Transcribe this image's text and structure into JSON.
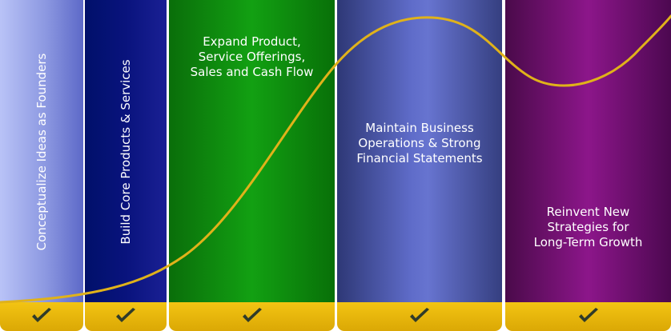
{
  "stages": [
    {
      "label": "Conceptualize Ideas as Founders"
    },
    {
      "label": "Build Core Products & Services"
    },
    {
      "label": "Expand Product,\nService Offerings,\nSales and Cash Flow"
    },
    {
      "label": "Maintain Business\nOperations & Strong\nFinancial Statements"
    },
    {
      "label": "Reinvent New\nStrategies for\nLong-Term Growth"
    }
  ],
  "colors": {
    "stage1": "#8a97df",
    "stage2": "#0a137a",
    "stage3": "#12a012",
    "stage4": "#5d6ac8",
    "stage5": "#8a1688",
    "curve": "#e0b21a",
    "footer": "#e9b80b",
    "check": "#2f3b2a"
  },
  "icons": {
    "check": "check-icon"
  }
}
